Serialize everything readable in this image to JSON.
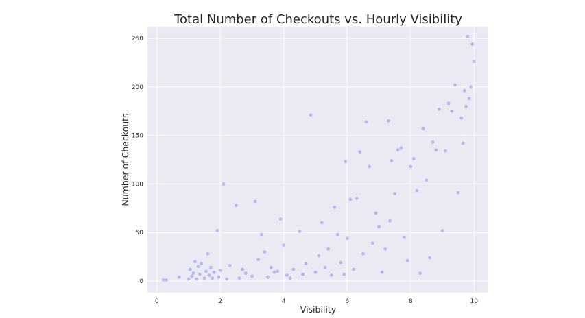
{
  "chart_data": {
    "type": "scatter",
    "title": "Total Number of Checkouts vs. Hourly Visibility",
    "xlabel": "Visibility",
    "ylabel": "Number of Checkouts",
    "xlim": [
      -0.3,
      10.45
    ],
    "ylim": [
      -12,
      262
    ],
    "xticks": [
      0,
      2,
      4,
      6,
      8,
      10
    ],
    "yticks": [
      0,
      50,
      100,
      150,
      200,
      250
    ],
    "grid": true,
    "background": "#eaeaf2",
    "grid_color": "#ffffff",
    "point_color": "#0000ff",
    "point_alpha": 0.22,
    "series": [
      {
        "x": [
          0.2,
          0.3,
          0.7,
          1.0,
          1.05,
          1.1,
          1.15,
          1.2,
          1.25,
          1.3,
          1.35,
          1.4,
          1.5,
          1.55,
          1.6,
          1.65,
          1.7,
          1.75,
          1.8,
          1.9,
          1.95,
          2.0,
          2.1,
          2.2,
          2.3,
          2.5,
          2.6,
          2.7,
          2.8,
          3.0,
          3.1,
          3.2,
          3.3,
          3.4,
          3.5,
          3.6,
          3.7,
          3.8,
          3.9,
          4.0,
          4.1,
          4.2,
          4.3,
          4.5,
          4.6,
          4.7,
          4.85,
          5.0,
          5.1,
          5.2,
          5.3,
          5.4,
          5.5,
          5.6,
          5.7,
          5.8,
          5.9,
          5.95,
          6.0,
          6.1,
          6.2,
          6.3,
          6.4,
          6.5,
          6.6,
          6.7,
          6.8,
          6.9,
          7.0,
          7.1,
          7.2,
          7.3,
          7.35,
          7.4,
          7.5,
          7.6,
          7.7,
          7.8,
          7.9,
          8.0,
          8.1,
          8.2,
          8.3,
          8.4,
          8.5,
          8.6,
          8.7,
          8.8,
          8.9,
          9.0,
          9.1,
          9.2,
          9.3,
          9.4,
          9.5,
          9.6,
          9.65,
          9.7,
          9.75,
          9.8,
          9.85,
          9.9,
          9.95,
          10.0
        ],
        "y": [
          1,
          1,
          4,
          2,
          12,
          5,
          8,
          20,
          2,
          15,
          7,
          18,
          3,
          10,
          28,
          6,
          14,
          3,
          9,
          52,
          4,
          11,
          100,
          2,
          16,
          78,
          3,
          12,
          8,
          5,
          82,
          22,
          48,
          30,
          4,
          14,
          9,
          10,
          64,
          37,
          6,
          3,
          12,
          51,
          7,
          18,
          171,
          9,
          26,
          60,
          14,
          33,
          6,
          76,
          48,
          19,
          7,
          123,
          44,
          84,
          12,
          85,
          133,
          28,
          164,
          118,
          39,
          70,
          56,
          9,
          33,
          165,
          62,
          124,
          90,
          135,
          137,
          45,
          21,
          118,
          126,
          93,
          8,
          157,
          104,
          24,
          143,
          135,
          177,
          52,
          134,
          183,
          175,
          202,
          91,
          168,
          142,
          196,
          180,
          252,
          188,
          200,
          244,
          226
        ]
      }
    ]
  }
}
